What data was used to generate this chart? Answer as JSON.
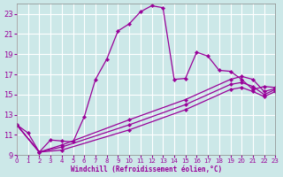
{
  "background_color": "#cce8e8",
  "grid_color": "#ffffff",
  "line_color": "#990099",
  "xlabel": "Windchill (Refroidissement éolien,°C)",
  "xlim": [
    0,
    23
  ],
  "ylim": [
    9,
    24
  ],
  "yticks": [
    9,
    11,
    13,
    15,
    17,
    19,
    21,
    23
  ],
  "xticks": [
    0,
    1,
    2,
    3,
    4,
    5,
    6,
    7,
    8,
    9,
    10,
    11,
    12,
    13,
    14,
    15,
    16,
    17,
    18,
    19,
    20,
    21,
    22,
    23
  ],
  "series": [
    {
      "x": [
        0,
        1,
        2,
        3,
        4,
        5,
        6,
        7,
        8,
        9,
        10,
        11,
        12,
        13,
        14,
        15,
        16,
        17,
        18,
        19,
        20,
        21,
        22,
        23
      ],
      "y": [
        12.0,
        11.2,
        9.3,
        10.5,
        10.4,
        10.3,
        12.8,
        16.5,
        18.5,
        21.3,
        22.0,
        23.2,
        23.8,
        23.6,
        16.5,
        16.6,
        19.2,
        18.8,
        17.4,
        17.3,
        16.5,
        15.5,
        15.8,
        15.7
      ]
    },
    {
      "x": [
        0,
        2,
        4,
        10,
        15,
        19,
        20,
        21,
        22,
        23
      ],
      "y": [
        12.0,
        9.3,
        10.0,
        12.5,
        14.5,
        16.5,
        16.8,
        16.5,
        15.3,
        15.6
      ]
    },
    {
      "x": [
        0,
        2,
        4,
        10,
        15,
        19,
        20,
        21,
        22,
        23
      ],
      "y": [
        12.0,
        9.3,
        9.8,
        12.0,
        14.0,
        16.0,
        16.2,
        15.8,
        15.0,
        15.5
      ]
    },
    {
      "x": [
        0,
        2,
        4,
        10,
        15,
        19,
        20,
        21,
        22,
        23
      ],
      "y": [
        12.0,
        9.3,
        9.5,
        11.5,
        13.5,
        15.5,
        15.7,
        15.3,
        14.8,
        15.3
      ]
    }
  ]
}
